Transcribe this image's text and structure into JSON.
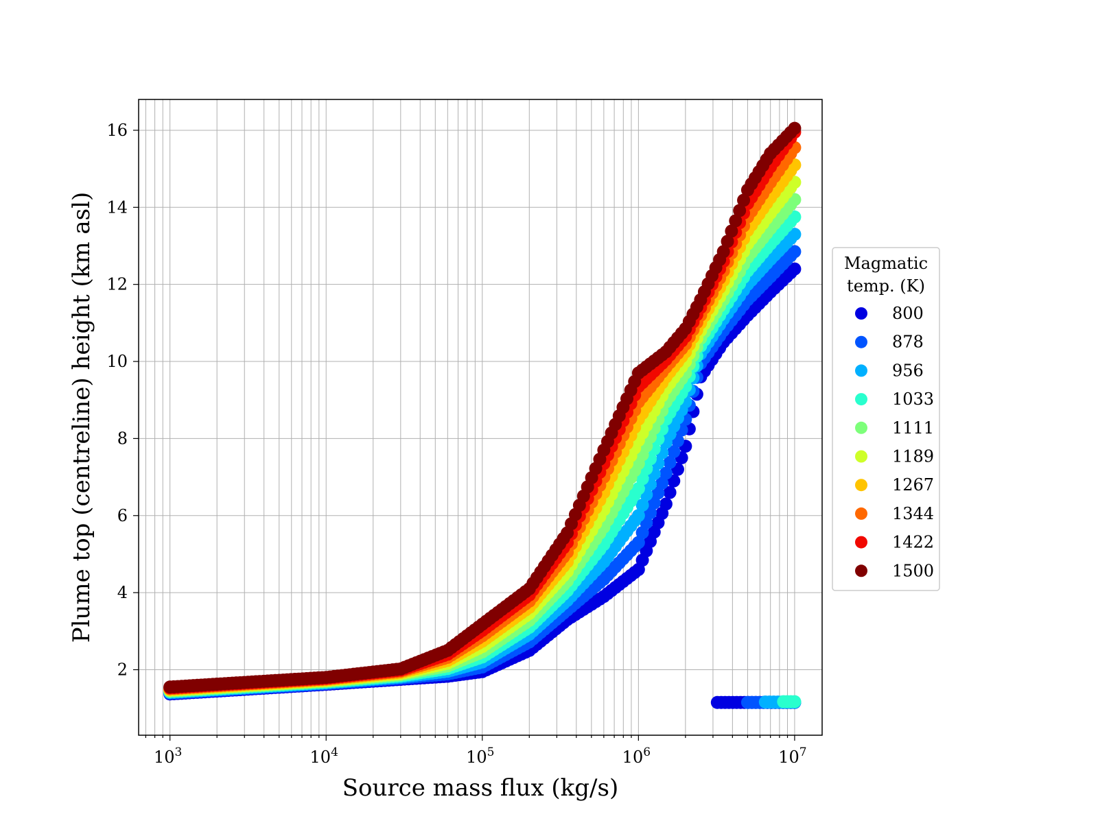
{
  "chart_data": {
    "type": "scatter",
    "title": "",
    "xlabel": "Source mass flux (kg/s)",
    "ylabel": "Plume top (centreline) height (km asl)",
    "x_scale": "log",
    "xlim": [
      630,
      15000000
    ],
    "ylim": [
      0.3,
      16.8
    ],
    "x_ticks": [
      1000,
      10000,
      100000,
      1000000,
      10000000
    ],
    "x_tick_labels": [
      {
        "base": "10",
        "exp": "3"
      },
      {
        "base": "10",
        "exp": "4"
      },
      {
        "base": "10",
        "exp": "5"
      },
      {
        "base": "10",
        "exp": "6"
      },
      {
        "base": "10",
        "exp": "7"
      }
    ],
    "y_ticks": [
      2,
      4,
      6,
      8,
      10,
      12,
      14,
      16
    ],
    "y_tick_labels": [
      "2",
      "4",
      "6",
      "8",
      "10",
      "12",
      "14",
      "16"
    ],
    "grid": true,
    "legend": {
      "title_lines": [
        "Magmatic",
        "temp. (K)"
      ],
      "placement": "outside-right",
      "entries": [
        "800",
        "878",
        "956",
        "1033",
        "1111",
        "1189",
        "1267",
        "1344",
        "1422",
        "1500"
      ]
    },
    "series": [
      {
        "name": "800",
        "color": "#0000e1",
        "x": [
          1000,
          10000,
          30000,
          60000,
          100000,
          200000,
          350000,
          600000,
          1000000,
          1500000,
          2000000,
          2500000,
          3500000,
          5000000,
          7000000,
          10000000
        ],
        "y": [
          1.37,
          1.62,
          1.75,
          1.83,
          1.95,
          2.5,
          3.3,
          3.9,
          4.6,
          6.3,
          7.8,
          9.6,
          10.5,
          11.2,
          11.8,
          12.4
        ]
      },
      {
        "name": "878",
        "color": "#0054ff",
        "x": [
          1000,
          10000,
          30000,
          60000,
          100000,
          200000,
          350000,
          600000,
          1000000,
          1500000,
          2000000,
          2500000,
          3500000,
          5000000,
          7000000,
          10000000
        ],
        "y": [
          1.39,
          1.64,
          1.78,
          1.89,
          2.07,
          2.72,
          3.55,
          4.35,
          5.3,
          7.1,
          8.5,
          9.95,
          10.8,
          11.6,
          12.2,
          12.85
        ]
      },
      {
        "name": "956",
        "color": "#00b0ff",
        "x": [
          1000,
          10000,
          30000,
          60000,
          100000,
          200000,
          350000,
          600000,
          1000000,
          1500000,
          2000000,
          2500000,
          3500000,
          5000000,
          7000000,
          10000000
        ],
        "y": [
          1.41,
          1.66,
          1.81,
          1.96,
          2.2,
          2.92,
          3.8,
          4.8,
          6.0,
          7.9,
          8.95,
          10.2,
          11.1,
          12.0,
          12.65,
          13.3
        ]
      },
      {
        "name": "1033",
        "color": "#29ffce",
        "x": [
          1000,
          10000,
          30000,
          60000,
          100000,
          200000,
          350000,
          600000,
          1000000,
          1500000,
          2000000,
          2500000,
          3500000,
          5000000,
          7000000,
          10000000
        ],
        "y": [
          1.43,
          1.68,
          1.84,
          2.03,
          2.33,
          3.1,
          4.05,
          5.25,
          6.7,
          8.5,
          9.35,
          10.4,
          11.35,
          12.35,
          13.05,
          13.75
        ]
      },
      {
        "name": "1111",
        "color": "#7dff7a",
        "x": [
          1000,
          10000,
          30000,
          60000,
          100000,
          200000,
          350000,
          600000,
          1000000,
          1500000,
          2000000,
          2500000,
          3500000,
          5000000,
          7000000,
          10000000
        ],
        "y": [
          1.45,
          1.7,
          1.87,
          2.1,
          2.46,
          3.28,
          4.3,
          5.7,
          7.35,
          8.95,
          9.7,
          10.6,
          11.6,
          12.7,
          13.45,
          14.2
        ]
      },
      {
        "name": "1189",
        "color": "#ceff29",
        "x": [
          1000,
          10000,
          30000,
          60000,
          100000,
          200000,
          350000,
          600000,
          1000000,
          1500000,
          2000000,
          2500000,
          3500000,
          5000000,
          7000000,
          10000000
        ],
        "y": [
          1.47,
          1.72,
          1.9,
          2.17,
          2.6,
          3.46,
          4.55,
          6.15,
          7.95,
          9.3,
          10.0,
          10.8,
          11.85,
          13.05,
          13.85,
          14.65
        ]
      },
      {
        "name": "1267",
        "color": "#ffc400",
        "x": [
          1000,
          10000,
          30000,
          60000,
          100000,
          200000,
          350000,
          600000,
          1000000,
          1500000,
          2000000,
          2500000,
          3500000,
          5000000,
          7000000,
          10000000
        ],
        "y": [
          1.49,
          1.74,
          1.93,
          2.24,
          2.74,
          3.62,
          4.8,
          6.6,
          8.5,
          9.6,
          10.25,
          11.0,
          12.1,
          13.4,
          14.25,
          15.1
        ]
      },
      {
        "name": "1344",
        "color": "#ff6800",
        "x": [
          1000,
          10000,
          30000,
          60000,
          100000,
          200000,
          350000,
          600000,
          1000000,
          1500000,
          2000000,
          2500000,
          3500000,
          5000000,
          7000000,
          10000000
        ],
        "y": [
          1.51,
          1.76,
          1.96,
          2.32,
          2.88,
          3.78,
          5.05,
          7.0,
          8.95,
          9.85,
          10.45,
          11.2,
          12.35,
          13.75,
          14.65,
          15.55
        ]
      },
      {
        "name": "1422",
        "color": "#f10800",
        "x": [
          1000,
          10000,
          30000,
          60000,
          100000,
          200000,
          350000,
          600000,
          1000000,
          1500000,
          2000000,
          2500000,
          3500000,
          5000000,
          7000000,
          10000000
        ],
        "y": [
          1.53,
          1.78,
          1.99,
          2.4,
          3.02,
          3.94,
          5.3,
          7.35,
          9.35,
          10.05,
          10.65,
          11.4,
          12.6,
          14.1,
          15.05,
          15.95
        ]
      },
      {
        "name": "1500",
        "color": "#800000",
        "x": [
          1000,
          10000,
          30000,
          60000,
          100000,
          200000,
          350000,
          600000,
          1000000,
          1500000,
          2000000,
          2500000,
          3500000,
          5000000,
          7000000,
          10000000
        ],
        "y": [
          1.55,
          1.8,
          2.02,
          2.5,
          3.18,
          4.1,
          5.55,
          7.7,
          9.7,
          10.25,
          10.85,
          11.6,
          12.85,
          14.45,
          15.4,
          16.05
        ]
      },
      {
        "name": "800",
        "color": "#0000e1",
        "x": [
          3200000,
          10000000
        ],
        "y": [
          1.15,
          1.15
        ]
      },
      {
        "name": "878",
        "color": "#0054ff",
        "x": [
          5000000,
          10000000
        ],
        "y": [
          1.15,
          1.15
        ]
      },
      {
        "name": "956",
        "color": "#00b0ff",
        "x": [
          6500000,
          10000000
        ],
        "y": [
          1.16,
          1.16
        ]
      },
      {
        "name": "1033",
        "color": "#29ffce",
        "x": [
          8500000,
          10000000
        ],
        "y": [
          1.17,
          1.17
        ]
      }
    ]
  }
}
